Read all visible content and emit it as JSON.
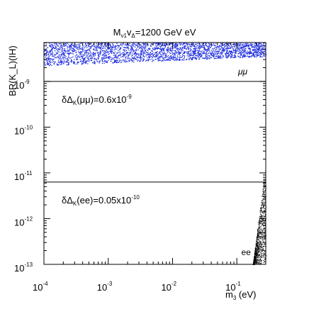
{
  "chart_data": {
    "type": "scatter",
    "title": "M",
    "title_sub1": "ν1",
    "title_mid": "v",
    "title_sub2": "Δ",
    "title_rest": "=1200 GeV eV",
    "xlabel_main": "m",
    "xlabel_sub": "3",
    "xlabel_unit": " (eV)",
    "ylabel": "BR(K_L)(IH)",
    "x_log_range": [
      -4,
      -0.55
    ],
    "y_log_range": [
      -13,
      -8.15
    ],
    "xscale": "log",
    "yscale": "log",
    "x_ticks": [
      {
        "base": "10",
        "exp": "-4",
        "value": -4
      },
      {
        "base": "10",
        "exp": "-3",
        "value": -3
      },
      {
        "base": "10",
        "exp": "-2",
        "value": -2
      },
      {
        "base": "10",
        "exp": "-1",
        "value": -1
      }
    ],
    "y_ticks": [
      {
        "base": "10",
        "exp": "-9",
        "value": -9
      },
      {
        "base": "10",
        "exp": "-10",
        "value": -10
      },
      {
        "base": "10",
        "exp": "-11",
        "value": -11
      },
      {
        "base": "10",
        "exp": "-12",
        "value": -12
      },
      {
        "base": "10",
        "exp": "-13",
        "value": -13
      }
    ],
    "series": [
      {
        "name": "μμ",
        "color": "#1f2fe0",
        "description_band": {
          "x_from": -4,
          "x_to": -0.55,
          "y_top_left": -8.15,
          "y_bottom_left": -8.65,
          "y_top_right": -8.15,
          "y_bottom_right": -8.45
        }
      },
      {
        "name": "ee",
        "color": "#000000",
        "description_wedge": {
          "x_apex": -0.75,
          "y_apex": -13,
          "x_right": -0.55,
          "y_top_right": -10.8
        }
      }
    ],
    "reference_lines": [
      {
        "y": -9.0,
        "label_prefix": "δΔ",
        "label_sub": "K",
        "label_arg": "(μμ)=0.6x10",
        "label_exp": "-9"
      },
      {
        "y": -11.2,
        "label_prefix": "δΔ",
        "label_sub": "K",
        "label_arg": "(ee)=0.05x10",
        "label_exp": "-10"
      }
    ],
    "grid": false,
    "legend": "inline"
  }
}
